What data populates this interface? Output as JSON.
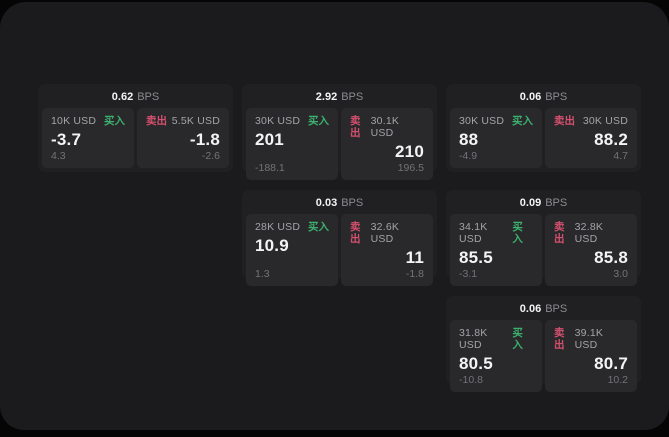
{
  "labels": {
    "bps_unit": "BPS",
    "buy": "买入",
    "sell": "卖出"
  },
  "colors": {
    "page_bg": "#050506",
    "surface_bg": "#1b1b1d",
    "card_bg": "#202022",
    "panel_bg": "#29292b",
    "text_primary": "#f4f4f5",
    "text_secondary": "#a4a4a8",
    "text_muted": "#737377",
    "text_bps": "#8b8b90",
    "buy_green": "#3cb06e",
    "sell_red": "#d5506e"
  },
  "cards": [
    {
      "bps": "0.62",
      "col": 1,
      "row": 1,
      "buy": {
        "amount": "10K USD",
        "price": "-3.7",
        "sub": "4.3"
      },
      "sell": {
        "amount": "5.5K USD",
        "price": "-1.8",
        "sub": "-2.6"
      }
    },
    {
      "bps": "2.92",
      "col": 2,
      "row": 1,
      "buy": {
        "amount": "30K USD",
        "price": "201",
        "sub": "-188.1"
      },
      "sell": {
        "amount": "30.1K USD",
        "price": "210",
        "sub": "196.5"
      }
    },
    {
      "bps": "0.06",
      "col": 3,
      "row": 1,
      "buy": {
        "amount": "30K USD",
        "price": "88",
        "sub": "-4.9"
      },
      "sell": {
        "amount": "30K USD",
        "price": "88.2",
        "sub": "4.7"
      }
    },
    {
      "bps": "0.03",
      "col": 2,
      "row": 2,
      "buy": {
        "amount": "28K USD",
        "price": "10.9",
        "sub": "1.3"
      },
      "sell": {
        "amount": "32.6K USD",
        "price": "11",
        "sub": "-1.8"
      }
    },
    {
      "bps": "0.09",
      "col": 3,
      "row": 2,
      "buy": {
        "amount": "34.1K USD",
        "price": "85.5",
        "sub": "-3.1"
      },
      "sell": {
        "amount": "32.8K USD",
        "price": "85.8",
        "sub": "3.0"
      }
    },
    {
      "bps": "0.06",
      "col": 3,
      "row": 3,
      "buy": {
        "amount": "31.8K USD",
        "price": "80.5",
        "sub": "-10.8"
      },
      "sell": {
        "amount": "39.1K USD",
        "price": "80.7",
        "sub": "10.2"
      }
    }
  ]
}
